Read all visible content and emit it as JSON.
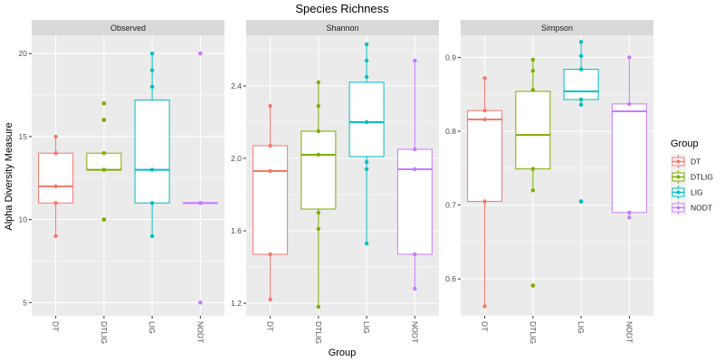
{
  "title": "Species Richness",
  "ylabel": "Alpha Diversity Measure",
  "xlabel": "Group",
  "legend": {
    "title": "Group",
    "position": "right",
    "items": [
      {
        "label": "DT",
        "color": "#F8766D"
      },
      {
        "label": "DTLIG",
        "color": "#7CAE00"
      },
      {
        "label": "LIG",
        "color": "#00BFC4"
      },
      {
        "label": "NODT",
        "color": "#C77CFF"
      }
    ]
  },
  "colors": {
    "panel_bg": "#EBEBEB",
    "strip_bg": "#D9D9D9",
    "grid": "#FFFFFF",
    "text": "#1A1A1A",
    "tick_text": "#4D4D4D"
  },
  "chart_data": {
    "type": "box",
    "categories": [
      "DT",
      "DTLIG",
      "LIG",
      "NODT"
    ],
    "grid": true,
    "panels": [
      {
        "name": "Observed",
        "ylim": [
          4.2,
          21.1
        ],
        "yticks": [
          5,
          10,
          15,
          20
        ],
        "ytick_labels": [
          "5",
          "10",
          "15",
          "20"
        ],
        "boxes": [
          {
            "group": "DT",
            "lower": 9,
            "q1": 11,
            "median": 12,
            "q3": 14,
            "upper": 15,
            "points": [
              9,
              11,
              12,
              14,
              15
            ]
          },
          {
            "group": "DTLIG",
            "lower": 13,
            "q1": 13,
            "median": 13,
            "q3": 14,
            "upper": 14,
            "outliers": [
              10,
              16,
              17
            ],
            "points": [
              10,
              13,
              13,
              14,
              16,
              17
            ]
          },
          {
            "group": "LIG",
            "lower": 9,
            "q1": 11,
            "median": 13,
            "q3": 17.2,
            "upper": 20,
            "points": [
              9,
              11,
              13,
              18,
              19,
              20
            ]
          },
          {
            "group": "NODT",
            "lower": 11,
            "q1": 11,
            "median": 11,
            "q3": 11,
            "upper": 11,
            "outliers": [
              5,
              20
            ],
            "points": [
              5,
              11,
              11,
              20
            ]
          }
        ]
      },
      {
        "name": "Shannon",
        "ylim": [
          1.13,
          2.68
        ],
        "yticks": [
          1.2,
          1.6,
          2.0,
          2.4
        ],
        "ytick_labels": [
          "1.2",
          "1.6",
          "2.0",
          "2.4"
        ],
        "boxes": [
          {
            "group": "DT",
            "lower": 1.22,
            "q1": 1.47,
            "median": 1.93,
            "q3": 2.07,
            "upper": 2.29,
            "points": [
              1.22,
              1.47,
              1.93,
              2.07,
              2.29
            ]
          },
          {
            "group": "DTLIG",
            "lower": 1.18,
            "q1": 1.72,
            "median": 2.02,
            "q3": 2.15,
            "upper": 2.42,
            "points": [
              1.18,
              1.61,
              1.7,
              2.02,
              2.15,
              2.29,
              2.42
            ]
          },
          {
            "group": "LIG",
            "lower": 1.53,
            "q1": 2.01,
            "median": 2.2,
            "q3": 2.42,
            "upper": 2.63,
            "points": [
              1.53,
              1.94,
              1.98,
              2.2,
              2.45,
              2.54,
              2.63
            ]
          },
          {
            "group": "NODT",
            "lower": 1.28,
            "q1": 1.47,
            "median": 1.94,
            "q3": 2.05,
            "upper": 2.54,
            "points": [
              1.28,
              1.47,
              1.94,
              2.05,
              2.54
            ]
          }
        ]
      },
      {
        "name": "Simpson",
        "ylim": [
          0.55,
          0.93
        ],
        "yticks": [
          0.6,
          0.7,
          0.8,
          0.9
        ],
        "ytick_labels": [
          "0.6",
          "0.7",
          "0.8",
          "0.9"
        ],
        "boxes": [
          {
            "group": "DT",
            "lower": 0.563,
            "q1": 0.705,
            "median": 0.816,
            "q3": 0.828,
            "upper": 0.872,
            "points": [
              0.563,
              0.705,
              0.816,
              0.828,
              0.872
            ]
          },
          {
            "group": "DTLIG",
            "lower": 0.72,
            "q1": 0.749,
            "median": 0.795,
            "q3": 0.854,
            "upper": 0.897,
            "outliers": [
              0.591
            ],
            "points": [
              0.591,
              0.72,
              0.749,
              0.856,
              0.882,
              0.897
            ]
          },
          {
            "group": "LIG",
            "lower": 0.836,
            "q1": 0.843,
            "median": 0.854,
            "q3": 0.884,
            "upper": 0.921,
            "outliers": [
              0.705
            ],
            "points": [
              0.705,
              0.836,
              0.843,
              0.884,
              0.902,
              0.921
            ]
          },
          {
            "group": "NODT",
            "lower": 0.683,
            "q1": 0.69,
            "median": 0.827,
            "q3": 0.837,
            "upper": 0.9,
            "points": [
              0.683,
              0.69,
              0.837,
              0.9
            ]
          }
        ]
      }
    ]
  }
}
